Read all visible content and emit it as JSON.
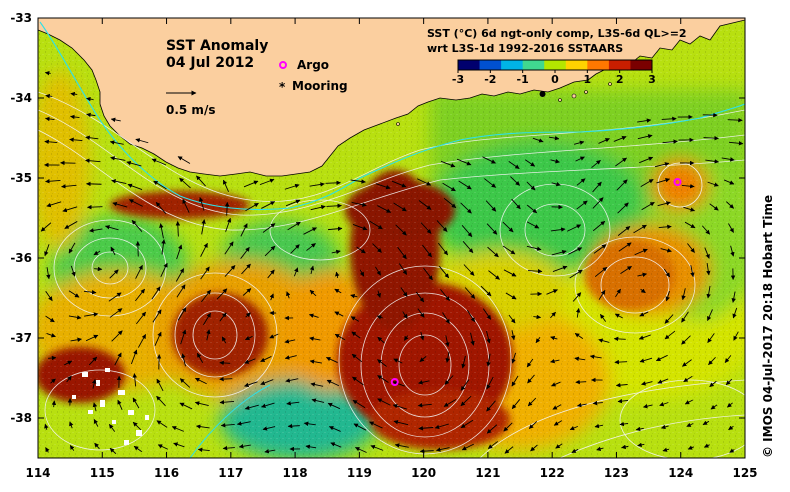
{
  "map": {
    "title": "SST Anomaly",
    "date": "04 Jul 2012",
    "scale_label": "0.5 m/s",
    "legend_line1": "SST (°C) 6d ngt-only comp, L3S-6d QL>=2",
    "legend_line2": "wrt L3S-1d 1992-2016 SSTAARS",
    "colorbar_ticks": [
      "-3",
      "-2",
      "-1",
      "0",
      "1",
      "2",
      "3"
    ],
    "colorbar_colors": [
      "#00006e",
      "#0050d0",
      "#00b4e6",
      "#40d890",
      "#b4e600",
      "#ffd200",
      "#ff7800",
      "#c81e00",
      "#7a0000"
    ],
    "argo_label": "Argo",
    "mooring_label": "Mooring",
    "credit": "© IMOS 04-Jul-2017 20:18 Hobart Time",
    "x_ticks": [
      "114",
      "115",
      "116",
      "117",
      "118",
      "119",
      "120",
      "121",
      "122",
      "123",
      "124",
      "125"
    ],
    "y_ticks": [
      "-33",
      "-34",
      "-35",
      "-36",
      "-37",
      "-38"
    ],
    "x_range": [
      114,
      125
    ],
    "y_range": [
      -38.5,
      -33
    ],
    "land_color": "#fbcf9f",
    "argo_floats": [
      {
        "lon": 119.55,
        "lat": -37.55
      },
      {
        "lon": 123.95,
        "lat": -35.05
      }
    ],
    "mooring": {
      "lon": 121.85,
      "lat": -33.95
    },
    "eddies": [
      {
        "lon": 120.0,
        "lat": -37.3,
        "type": "warm",
        "rotation": "ccw"
      },
      {
        "lon": 116.7,
        "lat": -37.0,
        "type": "warm",
        "rotation": "ccw"
      },
      {
        "lon": 118.7,
        "lat": -35.8,
        "type": "warm",
        "rotation": "ccw"
      },
      {
        "lon": 115.2,
        "lat": -36.1,
        "type": "cold",
        "rotation": "cw"
      },
      {
        "lon": 122.4,
        "lat": -35.5,
        "type": "cold",
        "rotation": "cw"
      },
      {
        "lon": 123.1,
        "lat": -36.2,
        "type": "warm",
        "rotation": "ccw"
      }
    ]
  }
}
